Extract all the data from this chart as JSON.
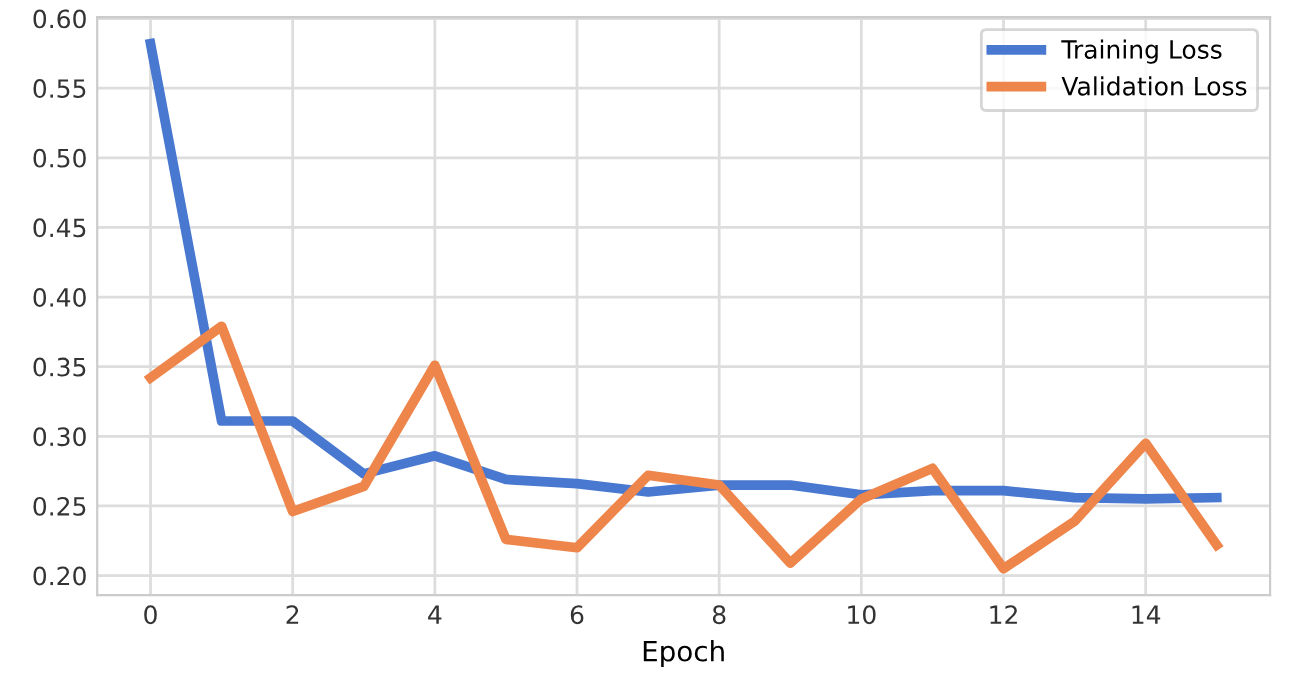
{
  "chart_data": {
    "type": "line",
    "xlabel": "Epoch",
    "x": [
      0,
      1,
      2,
      3,
      4,
      5,
      6,
      7,
      8,
      9,
      10,
      11,
      12,
      13,
      14,
      15
    ],
    "series": [
      {
        "name": "Training Loss",
        "color": "#4878d0",
        "values": [
          0.582,
          0.311,
          0.311,
          0.273,
          0.286,
          0.269,
          0.266,
          0.26,
          0.265,
          0.265,
          0.258,
          0.261,
          0.261,
          0.256,
          0.255,
          0.256
        ]
      },
      {
        "name": "Validation Loss",
        "color": "#ee854a",
        "values": [
          0.342,
          0.379,
          0.246,
          0.264,
          0.351,
          0.226,
          0.22,
          0.272,
          0.265,
          0.209,
          0.255,
          0.277,
          0.205,
          0.239,
          0.295,
          0.222
        ]
      }
    ],
    "xlim": [
      -0.75,
      15.75
    ],
    "xticks": [
      0,
      2,
      4,
      6,
      8,
      10,
      12,
      14
    ],
    "ylim": [
      0.186,
      0.601
    ],
    "yticks": [
      {
        "value": 0.2,
        "label": "0.20"
      },
      {
        "value": 0.25,
        "label": "0.25"
      },
      {
        "value": 0.3,
        "label": "0.30"
      },
      {
        "value": 0.35,
        "label": "0.35"
      },
      {
        "value": 0.4,
        "label": "0.40"
      },
      {
        "value": 0.45,
        "label": "0.45"
      },
      {
        "value": 0.5,
        "label": "0.50"
      },
      {
        "value": 0.55,
        "label": "0.55"
      },
      {
        "value": 0.6,
        "label": "0.60"
      }
    ],
    "grid": true,
    "legend": "top right",
    "line_style": "solid",
    "marker": "none"
  }
}
